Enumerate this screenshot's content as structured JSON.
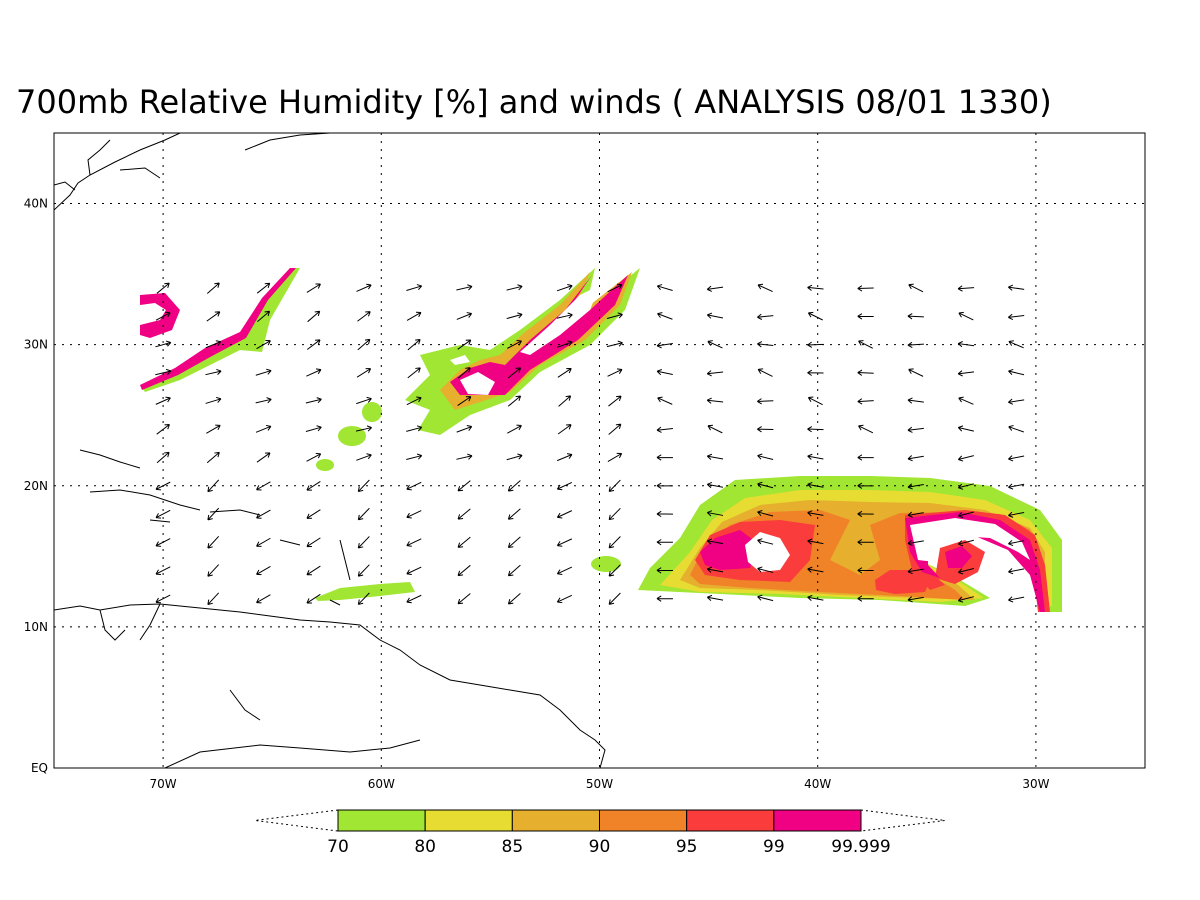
{
  "title": "700mb Relative Humidity [%] and winds ( ANALYSIS 08/01 1330)",
  "map": {
    "lon_range": [
      -75,
      -25
    ],
    "lat_range": [
      0,
      45
    ],
    "lon_ticks": [
      {
        "value": -70,
        "label": "70W"
      },
      {
        "value": -60,
        "label": "60W"
      },
      {
        "value": -50,
        "label": "50W"
      },
      {
        "value": -40,
        "label": "40W"
      },
      {
        "value": -30,
        "label": "30W"
      }
    ],
    "lat_ticks": [
      {
        "value": 0,
        "label": "EQ"
      },
      {
        "value": 10,
        "label": "10N"
      },
      {
        "value": 20,
        "label": "20N"
      },
      {
        "value": 30,
        "label": "30N"
      },
      {
        "value": 40,
        "label": "40N"
      }
    ],
    "grid": "dotted"
  },
  "colorbar": {
    "labels": [
      "70",
      "80",
      "85",
      "90",
      "95",
      "99",
      "99.999"
    ],
    "colors": [
      "#a0e632",
      "#e6dc32",
      "#e6af2d",
      "#f08228",
      "#fa3c3c",
      "#f00082"
    ]
  }
}
